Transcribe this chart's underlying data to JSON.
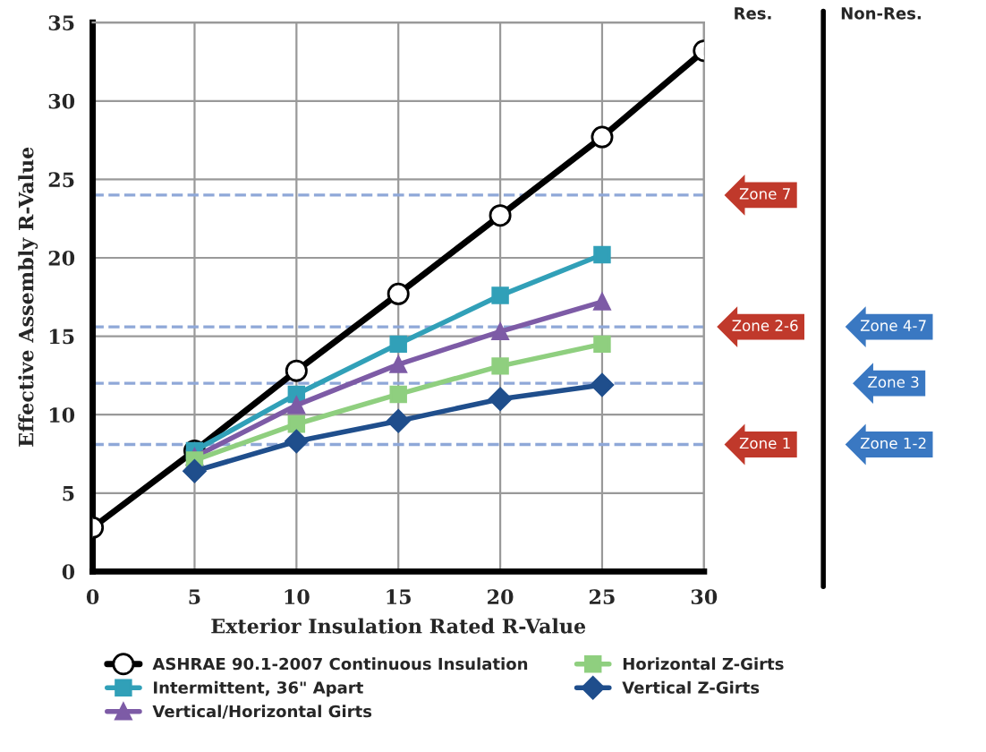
{
  "chart_data": {
    "type": "line",
    "xlabel": "Exterior Insulation Rated R-Value",
    "ylabel": "Effective Assembly R-Value",
    "xlim": [
      0,
      30
    ],
    "xticks": [
      0,
      5,
      10,
      15,
      20,
      25,
      30
    ],
    "ylim": [
      0,
      35
    ],
    "yticks": [
      0,
      5,
      10,
      15,
      20,
      25,
      30,
      35
    ],
    "grid": true,
    "legend": "bottom",
    "line_style": "solid",
    "series": [
      {
        "name": "ASHRAE 90.1-2007 Continuous Insulation",
        "color": "#000000",
        "marker": "circle",
        "x": [
          0,
          5,
          10,
          15,
          20,
          25,
          30
        ],
        "values": [
          2.8,
          7.7,
          12.8,
          17.7,
          22.7,
          27.7,
          33.2
        ]
      },
      {
        "name": "Intermittent, 36\" Apart",
        "color": "#31a0b8",
        "marker": "square",
        "x": [
          5,
          10,
          15,
          20,
          25
        ],
        "values": [
          7.7,
          11.3,
          14.5,
          17.6,
          20.2
        ]
      },
      {
        "name": "Vertical/Horizontal Girts",
        "color": "#7d5ba6",
        "marker": "triangle",
        "x": [
          5,
          10,
          15,
          20,
          25
        ],
        "values": [
          7.3,
          10.6,
          13.2,
          15.3,
          17.2
        ]
      },
      {
        "name": "Horizontal Z-Girts",
        "color": "#8fcf7f",
        "marker": "square",
        "x": [
          5,
          10,
          15,
          20,
          25
        ],
        "values": [
          7.1,
          9.4,
          11.3,
          13.1,
          14.5
        ]
      },
      {
        "name": "Vertical Z-Girts",
        "color": "#1f4e8c",
        "marker": "diamond",
        "x": [
          5,
          10,
          15,
          20,
          25
        ],
        "values": [
          6.4,
          8.3,
          9.6,
          11.0,
          11.9
        ]
      }
    ],
    "ref_lines": [
      {
        "axis": "y",
        "value": 24,
        "label": "Zone 7",
        "color": "#8fa8d8",
        "line_style": "dashed"
      },
      {
        "axis": "y",
        "value": 15.6,
        "label": "Zone 2-6",
        "color": "#8fa8d8",
        "line_style": "dashed"
      },
      {
        "axis": "y",
        "value": 12,
        "color": "#8fa8d8",
        "line_style": "dashed"
      },
      {
        "axis": "y",
        "value": 8.1,
        "label": "Zone 1",
        "color": "#8fa8d8",
        "line_style": "dashed"
      }
    ],
    "annotations": [
      "Res.",
      "Non-Res.",
      "Zone 4-7",
      "Zone 3",
      "Zone 1-2"
    ]
  }
}
